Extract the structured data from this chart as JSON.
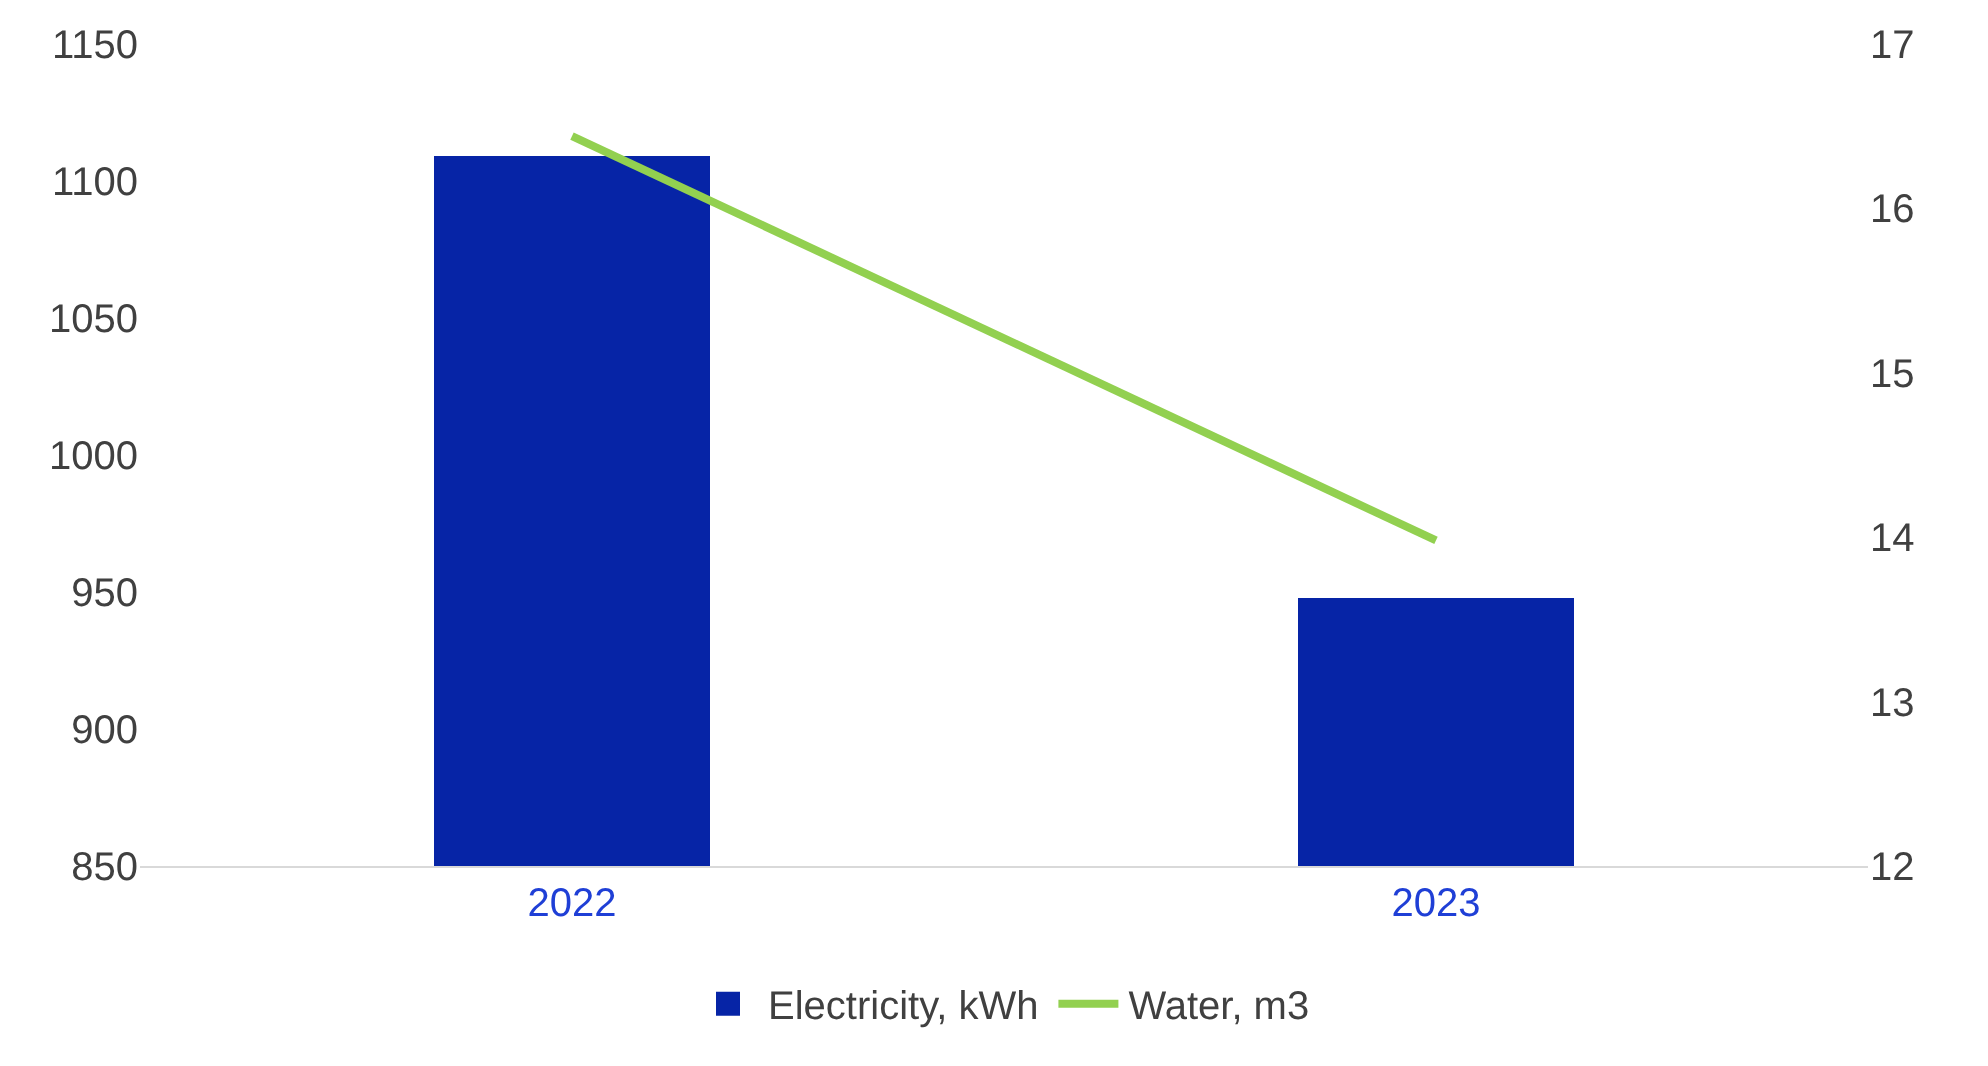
{
  "chart_data": {
    "type": "bar",
    "categories": [
      "2022",
      "2023"
    ],
    "series": [
      {
        "name": "Electricity, kWh",
        "color": "#0624a6",
        "values": [
          1109,
          948
        ]
      },
      {
        "name": "Water, m3",
        "color": "#92d050",
        "values": [
          16.44,
          13.98
        ],
        "type": "line",
        "axis": "y2",
        "marker": "none"
      }
    ],
    "ylim": [
      850,
      1150
    ],
    "yticks": [
      850,
      900,
      950,
      1000,
      1050,
      1100,
      1150
    ],
    "y2lim": [
      12,
      17
    ],
    "y2ticks": [
      12,
      13,
      14,
      15,
      16,
      17
    ],
    "legend": "bottom"
  }
}
